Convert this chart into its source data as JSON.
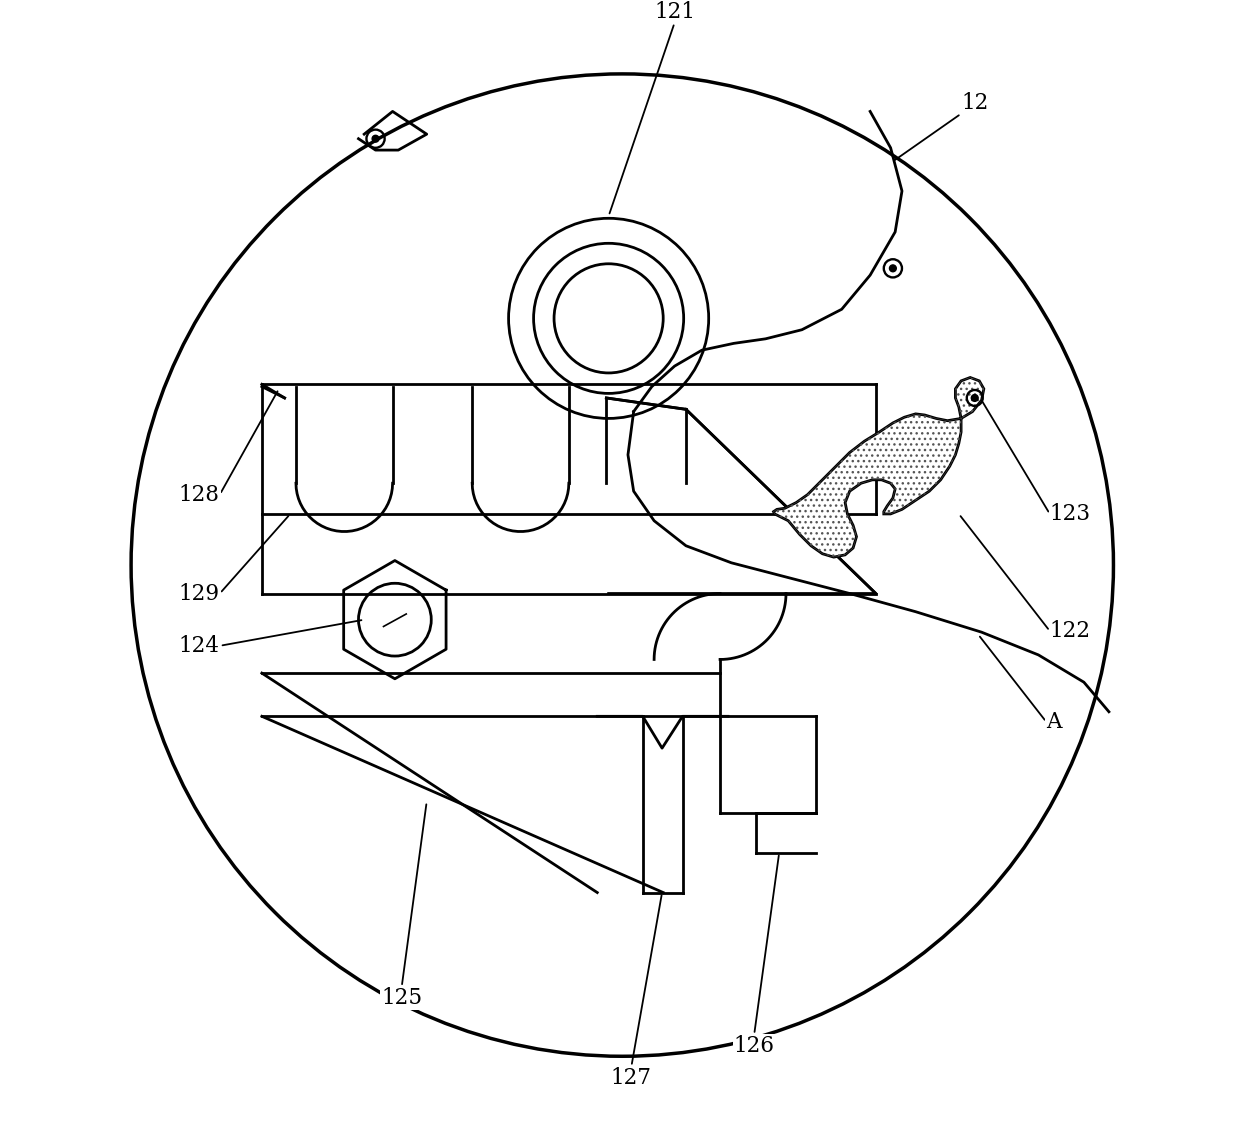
{
  "bg_color": "#ffffff",
  "line_color": "#000000",
  "figsize": [
    12.4,
    11.37
  ],
  "dpi": 100
}
